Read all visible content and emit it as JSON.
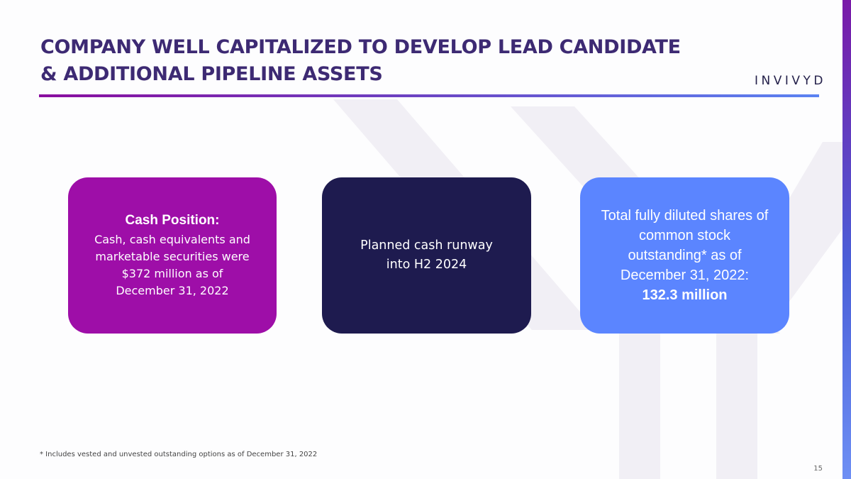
{
  "slide": {
    "title_line1": "COMPANY WELL CAPITALIZED TO DEVELOP LEAD CANDIDATE",
    "title_line2": "& ADDITIONAL PIPELINE ASSETS",
    "logo_text": "INVIVYD",
    "cards": [
      {
        "heading": "Cash Position:",
        "body": [
          "Cash, cash equivalents and",
          "marketable securities were",
          "$372 million as of",
          "December 31, 2022"
        ],
        "color": "#9e0ea8"
      },
      {
        "body": [
          "Planned cash runway",
          "into H2 2024"
        ],
        "color": "#1e1b4f"
      },
      {
        "body": [
          "Total fully diluted shares of",
          "common stock",
          "outstanding* as of",
          "December 31, 2022:"
        ],
        "emphasis": "132.3 million",
        "color": "#5b85ff"
      }
    ],
    "footnote": "* Includes vested and unvested outstanding options as of December 31, 2022",
    "page_number": "15"
  },
  "colors": {
    "title": "#3d2a73",
    "accent_start": "#8a0d9e",
    "accent_end": "#5b83f2"
  }
}
